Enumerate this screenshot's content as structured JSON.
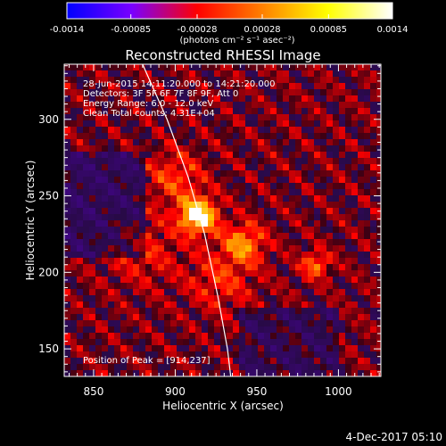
{
  "chart_data": {
    "type": "heatmap",
    "title": "Reconstructed RHESSI Image",
    "xlabel": "Heliocentric X (arcsec)",
    "ylabel": "Heliocentric Y (arcsec)",
    "xlim": [
      832,
      1026
    ],
    "ylim": [
      132,
      336
    ],
    "x_ticks": [
      850,
      900,
      950,
      1000
    ],
    "y_ticks": [
      150,
      200,
      250,
      300
    ],
    "colorbar": {
      "range": [
        -0.0014,
        0.0014
      ],
      "tick_values": [
        -0.0014,
        -0.00085,
        -0.00028,
        0.00028,
        0.00085,
        0.0014
      ],
      "tick_labels": [
        "-0.0014",
        "-0.00085",
        "-0.00028",
        "0.00028",
        "0.00085",
        "0.0014"
      ],
      "unit_label": "(photons cm⁻² s⁻¹ asec⁻²)",
      "colors": [
        "#0000ff",
        "#7a00ff",
        "#ff0000",
        "#ff8000",
        "#ffff00",
        "#ffffff"
      ]
    },
    "annotations": [
      "28-Jun-2015 14:11:20.000 to 14:21:20.000",
      "Detectors: 3F 5F 6F 7F 8F 9F, Att 0",
      "Energy Range: 6.0 - 12.0 keV",
      "Clean    Total counts: 4.31E+04"
    ],
    "peak_label": "Position of Peak = [914,237]",
    "peak": [
      914,
      237
    ],
    "sources": [
      {
        "x": 914,
        "y": 237,
        "amp": 1.0,
        "sigma": 8
      },
      {
        "x": 942,
        "y": 219,
        "amp": 0.55,
        "sigma": 9
      },
      {
        "x": 986,
        "y": 205,
        "amp": 0.5,
        "sigma": 6
      },
      {
        "x": 900,
        "y": 262,
        "amp": 0.35,
        "sigma": 12
      },
      {
        "x": 928,
        "y": 195,
        "amp": 0.3,
        "sigma": 14
      },
      {
        "x": 880,
        "y": 215,
        "amp": 0.25,
        "sigma": 16
      }
    ],
    "limb_curve": [
      [
        880,
        336
      ],
      [
        895,
        300
      ],
      [
        908,
        262
      ],
      [
        918,
        225
      ],
      [
        926,
        185
      ],
      [
        932,
        150
      ],
      [
        934,
        132
      ]
    ]
  },
  "timestamp": "4-Dec-2017 05:10"
}
